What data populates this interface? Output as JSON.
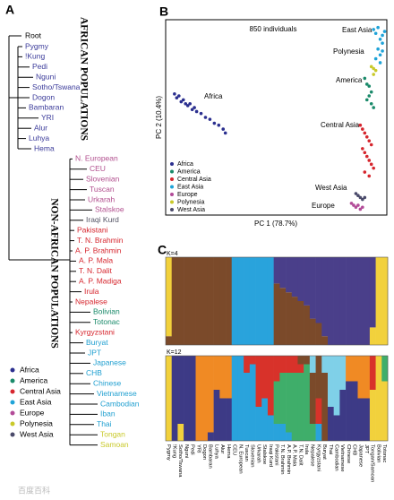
{
  "chart_data": [
    {
      "type": "tree",
      "panel": "A",
      "root": "Root",
      "group_labels": [
        "AFRICAN POPULATIONS",
        "NON-AFRICAN POPULATIONS"
      ],
      "leaves": [
        {
          "label": "Pygmy",
          "color": "#3b3b9a"
        },
        {
          "label": "!Kung",
          "color": "#3b3b9a"
        },
        {
          "label": "Pedi",
          "color": "#3b3b9a"
        },
        {
          "label": "Nguni",
          "color": "#3b3b9a"
        },
        {
          "label": "Sotho/Tswana",
          "color": "#3b3b9a"
        },
        {
          "label": "Dogon",
          "color": "#3b3b9a"
        },
        {
          "label": "Bambaran",
          "color": "#3b3b9a"
        },
        {
          "label": "YRI",
          "color": "#3b3b9a"
        },
        {
          "label": "Alur",
          "color": "#3b3b9a"
        },
        {
          "label": "Luhya",
          "color": "#3b3b9a"
        },
        {
          "label": "Hema",
          "color": "#3b3b9a"
        },
        {
          "label": "N. European",
          "color": "#b2508f"
        },
        {
          "label": "CEU",
          "color": "#b2508f"
        },
        {
          "label": "Slovenian",
          "color": "#b2508f"
        },
        {
          "label": "Tuscan",
          "color": "#b2508f"
        },
        {
          "label": "Urkarah",
          "color": "#b2508f"
        },
        {
          "label": "Stalskoe",
          "color": "#b2508f"
        },
        {
          "label": "Iraqi Kurd",
          "color": "#555566"
        },
        {
          "label": "Pakistani",
          "color": "#d6262e"
        },
        {
          "label": "T. N. Brahmin",
          "color": "#d6262e"
        },
        {
          "label": "A. P. Brahmin",
          "color": "#d6262e"
        },
        {
          "label": "A. P. Mala",
          "color": "#d6262e"
        },
        {
          "label": "T. N. Dalit",
          "color": "#d6262e"
        },
        {
          "label": "A. P. Madiga",
          "color": "#d6262e"
        },
        {
          "label": "Irula",
          "color": "#d6262e"
        },
        {
          "label": "Nepalese",
          "color": "#d6262e"
        },
        {
          "label": "Bolivian",
          "color": "#1a8a6a"
        },
        {
          "label": "Totonac",
          "color": "#1a8a6a"
        },
        {
          "label": "Kyrgyzstani",
          "color": "#d6262e"
        },
        {
          "label": "Buryat",
          "color": "#1f9fd0"
        },
        {
          "label": "JPT",
          "color": "#1f9fd0"
        },
        {
          "label": "Japanese",
          "color": "#1f9fd0"
        },
        {
          "label": "CHB",
          "color": "#1f9fd0"
        },
        {
          "label": "Chinese",
          "color": "#1f9fd0"
        },
        {
          "label": "Vietnamese",
          "color": "#1f9fd0"
        },
        {
          "label": "Cambodian",
          "color": "#1f9fd0"
        },
        {
          "label": "Iban",
          "color": "#1f9fd0"
        },
        {
          "label": "Thai",
          "color": "#1f9fd0"
        },
        {
          "label": "Tongan",
          "color": "#c9c92a"
        },
        {
          "label": "Samoan",
          "color": "#c9c92a"
        }
      ],
      "legend": [
        {
          "name": "Africa",
          "color": "#2b2f8f"
        },
        {
          "name": "America",
          "color": "#1a8a6a"
        },
        {
          "name": "Central Asia",
          "color": "#d6262e"
        },
        {
          "name": "East Asia",
          "color": "#1fa3d8"
        },
        {
          "name": "Europe",
          "color": "#b24b98"
        },
        {
          "name": "Polynesia",
          "color": "#c9c92a"
        },
        {
          "name": "West Asia",
          "color": "#4a4a6a"
        }
      ]
    },
    {
      "type": "scatter",
      "panel": "B",
      "title": "850 individuals",
      "xlabel": "PC 1 (78.7%)",
      "ylabel": "PC 2 (10.4%)",
      "xlim": [
        0,
        100
      ],
      "ylim": [
        0,
        100
      ],
      "annotations": [
        "Africa",
        "East Asia",
        "Polynesia",
        "America",
        "Central Asia",
        "West Asia",
        "Europe"
      ],
      "series": [
        {
          "name": "Africa",
          "color": "#2b2f8f",
          "x": [
            4,
            5,
            6,
            7,
            8,
            9,
            10,
            11,
            12,
            13,
            14,
            16,
            18,
            20,
            22,
            24,
            26,
            27
          ],
          "y": [
            62,
            60,
            61,
            58,
            59,
            57,
            56,
            57,
            54,
            55,
            53,
            52,
            50,
            49,
            47,
            46,
            44,
            42
          ]
        },
        {
          "name": "America",
          "color": "#1a8a6a",
          "x": [
            90,
            91,
            92,
            93,
            92,
            91,
            93,
            94
          ],
          "y": [
            70,
            67,
            66,
            63,
            61,
            59,
            57,
            55
          ]
        },
        {
          "name": "Central Asia",
          "color": "#d6262e",
          "x": [
            88,
            89,
            90,
            91,
            92,
            93,
            89,
            90,
            91,
            92,
            93,
            94,
            90,
            92
          ],
          "y": [
            46,
            44,
            42,
            40,
            38,
            36,
            34,
            32,
            30,
            28,
            26,
            24,
            22,
            20
          ]
        },
        {
          "name": "East Asia",
          "color": "#1fa3d8",
          "x": [
            94,
            95,
            96,
            97,
            98,
            99,
            96,
            97,
            98,
            95,
            97,
            98
          ],
          "y": [
            95,
            93,
            96,
            90,
            92,
            94,
            85,
            82,
            88,
            80,
            78,
            84
          ]
        },
        {
          "name": "Europe",
          "color": "#b24b98",
          "x": [
            84,
            85,
            86,
            87,
            88,
            89
          ],
          "y": [
            6,
            5,
            4,
            5,
            3,
            4
          ]
        },
        {
          "name": "Polynesia",
          "color": "#c9c92a",
          "x": [
            93,
            94,
            95,
            94
          ],
          "y": [
            76,
            75,
            74,
            72
          ]
        },
        {
          "name": "West Asia",
          "color": "#4a4a6a",
          "x": [
            86,
            87,
            88,
            89,
            90
          ],
          "y": [
            11,
            10,
            9,
            8,
            9
          ]
        }
      ]
    },
    {
      "type": "stacked_bar",
      "panel": "C",
      "title": "K=4",
      "ylim": [
        0,
        1
      ],
      "categories": [
        "Pygmy",
        "!Kung",
        "Sotho/Tswana",
        "Nguni",
        "Pedi",
        "YRI",
        "Dogon",
        "Bambaran",
        "Luhya",
        "Alur",
        "Hema",
        "CEU",
        "N. European",
        "Tuscan",
        "Slovenian",
        "Urkarah",
        "Stalskoe",
        "Iraqi Kurd",
        "Pakistani",
        "T.N. Brahmin",
        "A.P. Brahmin",
        "A.P. Mala",
        "T.N. Dalit",
        "Irula",
        "Nepalese",
        "Kyrgyzstani",
        "Buryat",
        "Thai",
        "Cambodian",
        "Vietnamese",
        "Chinese",
        "CHB",
        "Japanese",
        "JPT",
        "Tongan/Samoan",
        "Bolivian",
        "Totonac"
      ],
      "series": [
        {
          "color": "#7b4a2a",
          "values": [
            0.1,
            1,
            1,
            1,
            1,
            1,
            1,
            1,
            1,
            1,
            1,
            0,
            0,
            0,
            0,
            0,
            0,
            0,
            0.7,
            0.65,
            0.6,
            0.55,
            0.5,
            0.45,
            0.3,
            0.25,
            0.1,
            0,
            0,
            0,
            0,
            0,
            0,
            0,
            0,
            0,
            0
          ]
        },
        {
          "color": "#f2d13c",
          "values": [
            0.9,
            0,
            0,
            0,
            0,
            0,
            0,
            0,
            0,
            0,
            0,
            0,
            0,
            0,
            0,
            0,
            0,
            0,
            0,
            0,
            0,
            0,
            0,
            0,
            0,
            0,
            0,
            0,
            0,
            0,
            0,
            0,
            0,
            0,
            0.2,
            1,
            1
          ]
        },
        {
          "color": "#4a3f8a",
          "values": [
            0,
            0,
            0,
            0,
            0,
            0,
            0,
            0,
            0,
            0,
            0,
            0,
            0,
            0,
            0,
            0,
            0,
            0,
            0.3,
            0.35,
            0.4,
            0.45,
            0.5,
            0.55,
            0.7,
            0.75,
            0.9,
            1,
            1,
            1,
            1,
            1,
            1,
            1,
            0.8,
            0,
            0
          ]
        },
        {
          "color": "#29a3dc",
          "values": [
            0,
            0,
            0,
            0,
            0,
            0,
            0,
            0,
            0,
            0,
            0,
            1,
            1,
            1,
            1,
            1,
            1,
            1,
            0,
            0,
            0,
            0,
            0,
            0,
            0,
            0,
            0,
            0,
            0,
            0,
            0,
            0,
            0,
            0,
            0,
            0,
            0
          ]
        }
      ]
    },
    {
      "type": "stacked_bar",
      "title": "K=12",
      "ylim": [
        0,
        1
      ],
      "series": [
        {
          "color": "#f2d13c",
          "values": [
            1,
            0,
            0.2,
            0,
            0,
            0,
            0,
            0,
            0,
            0,
            0,
            0,
            0,
            0,
            0,
            0,
            0,
            0,
            0,
            0,
            0,
            0,
            0,
            0,
            0,
            0,
            0,
            0,
            0,
            0,
            0,
            0,
            0,
            0,
            0.6,
            1,
            0.7
          ]
        },
        {
          "color": "#3d3a86",
          "values": [
            0,
            1,
            0.8,
            1,
            1,
            0,
            0,
            0.1,
            0.6,
            0.5,
            0.5,
            0,
            0,
            0,
            0,
            0,
            0,
            0,
            0,
            0,
            0,
            0,
            0,
            0,
            0,
            0,
            0,
            0.4,
            0.3,
            0.6,
            0.7,
            0.7,
            0.5,
            0.5,
            0,
            0,
            0
          ]
        },
        {
          "color": "#f08a24",
          "values": [
            0,
            0,
            0,
            0,
            0,
            1,
            1,
            0.9,
            0.4,
            0.5,
            0.5,
            0,
            0,
            0,
            0,
            0,
            0,
            0,
            0,
            0,
            0,
            0,
            0,
            0,
            0,
            0,
            0,
            0,
            0,
            0,
            0.3,
            0.3,
            0.5,
            0.5,
            0,
            0,
            0
          ]
        },
        {
          "color": "#29a3dc",
          "values": [
            0,
            0,
            0,
            0,
            0,
            0,
            0,
            0,
            0,
            0,
            0,
            1,
            1,
            0.8,
            0.9,
            0.4,
            0.5,
            0.3,
            0.2,
            0.2,
            0.1,
            0,
            0,
            0,
            0,
            0.2,
            0,
            0,
            0,
            0,
            0,
            0,
            0,
            0,
            0,
            0,
            0
          ]
        },
        {
          "color": "#3fae6a",
          "values": [
            0,
            0,
            0,
            0,
            0,
            0,
            0,
            0,
            0,
            0,
            0,
            0,
            0,
            0,
            0,
            0,
            0,
            0,
            0.5,
            0.6,
            0.7,
            0.8,
            0.8,
            0.9,
            0.2,
            0,
            0,
            0,
            0,
            0,
            0,
            0,
            0,
            0,
            0,
            0,
            0.3
          ]
        },
        {
          "color": "#d8322a",
          "values": [
            0,
            0,
            0,
            0,
            0,
            0,
            0,
            0,
            0,
            0,
            0,
            0,
            0,
            0.2,
            0.1,
            0.6,
            0.5,
            0.7,
            0.3,
            0.2,
            0.2,
            0.2,
            0.1,
            0,
            0,
            0.3,
            0,
            0,
            0,
            0,
            0,
            0,
            0,
            0,
            0.4,
            0,
            0
          ]
        },
        {
          "color": "#7b4a2a",
          "values": [
            0,
            0,
            0,
            0,
            0,
            0,
            0,
            0,
            0,
            0,
            0,
            0,
            0,
            0,
            0,
            0,
            0,
            0,
            0,
            0,
            0,
            0,
            0.1,
            0.1,
            0.6,
            0.5,
            0.8,
            0,
            0,
            0,
            0,
            0,
            0,
            0,
            0,
            0,
            0
          ]
        },
        {
          "color": "#7fd0e8",
          "values": [
            0,
            0,
            0,
            0,
            0,
            0,
            0,
            0,
            0,
            0,
            0,
            0,
            0,
            0,
            0,
            0,
            0,
            0,
            0,
            0,
            0,
            0,
            0,
            0,
            0.2,
            0,
            0.2,
            0.6,
            0.7,
            0.4,
            0,
            0,
            0,
            0,
            0,
            0,
            0
          ]
        }
      ]
    }
  ],
  "watermark": "百度百科"
}
